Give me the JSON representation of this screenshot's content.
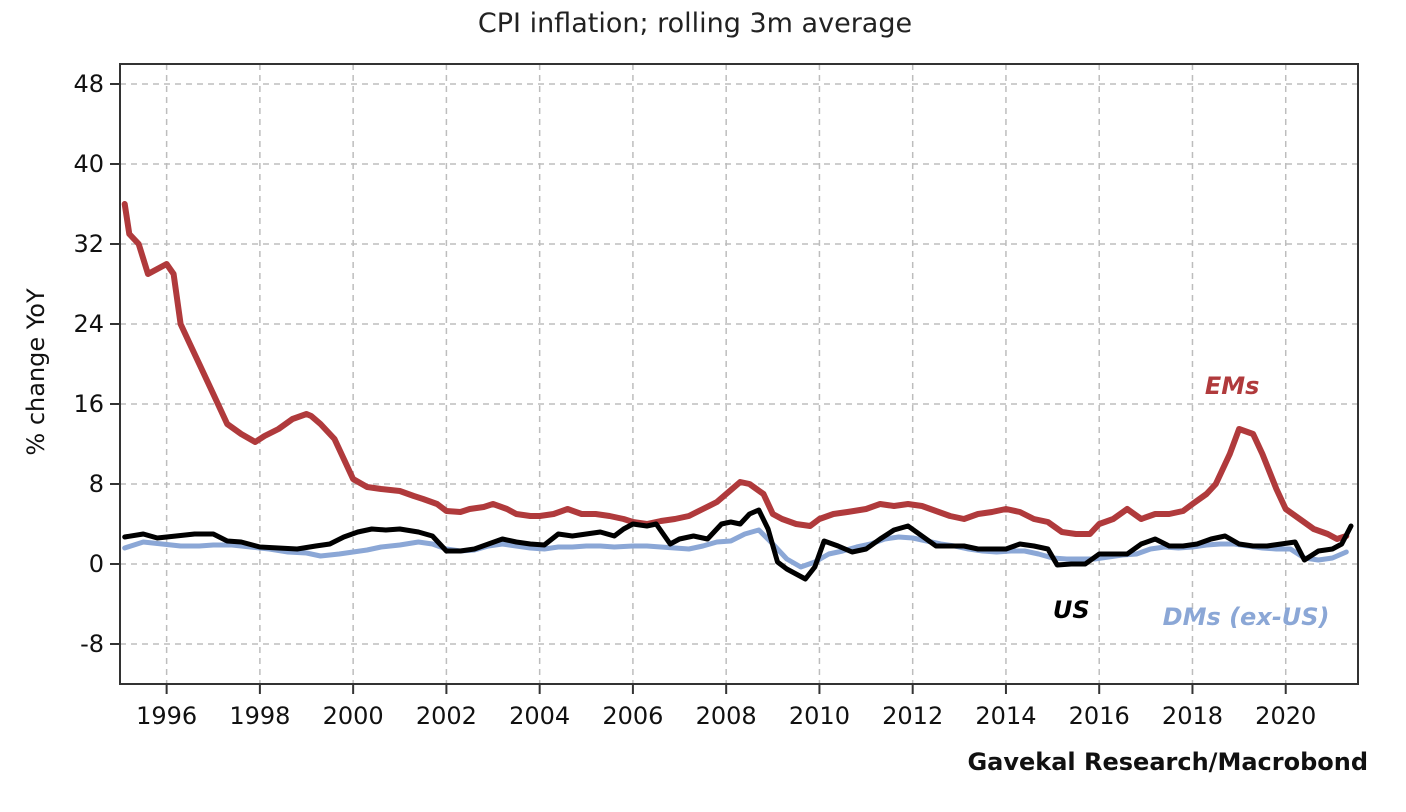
{
  "chart_data": {
    "type": "line",
    "title": "CPI inflation; rolling 3m average",
    "ylabel": "% change YoY",
    "xlabel": "",
    "source": "Gavekal Research/Macrobond",
    "ylim": [
      -12,
      50
    ],
    "xlim": [
      1995.0,
      2021.55
    ],
    "yticks": [
      -8,
      0,
      8,
      16,
      24,
      32,
      40,
      48
    ],
    "xticks": [
      1996,
      1998,
      2000,
      2002,
      2004,
      2006,
      2008,
      2010,
      2012,
      2014,
      2016,
      2018,
      2020
    ],
    "grid": true,
    "colors": {
      "EMs": "#b03a3c",
      "US": "#000000",
      "DMs (ex-US)": "#8ba7d6"
    },
    "series": [
      {
        "name": "EMs",
        "label": "EMs",
        "x": [
          1995.1,
          1995.2,
          1995.4,
          1995.6,
          1995.8,
          1996.0,
          1996.15,
          1996.3,
          1996.5,
          1996.7,
          1997.0,
          1997.3,
          1997.6,
          1997.9,
          1998.1,
          1998.4,
          1998.7,
          1999.0,
          1999.1,
          1999.3,
          1999.6,
          1999.8,
          2000.0,
          2000.3,
          2000.6,
          2001.0,
          2001.3,
          2001.5,
          2001.8,
          2002.0,
          2002.3,
          2002.5,
          2002.8,
          2003.0,
          2003.3,
          2003.5,
          2003.8,
          2004.0,
          2004.3,
          2004.6,
          2004.9,
          2005.2,
          2005.5,
          2005.8,
          2006.0,
          2006.3,
          2006.6,
          2006.9,
          2007.2,
          2007.5,
          2007.8,
          2008.0,
          2008.3,
          2008.5,
          2008.8,
          2009.0,
          2009.2,
          2009.5,
          2009.8,
          2010.0,
          2010.3,
          2010.6,
          2011.0,
          2011.3,
          2011.6,
          2011.9,
          2012.2,
          2012.5,
          2012.8,
          2013.1,
          2013.4,
          2013.7,
          2014.0,
          2014.3,
          2014.6,
          2014.9,
          2015.2,
          2015.5,
          2015.8,
          2016.0,
          2016.3,
          2016.6,
          2016.9,
          2017.2,
          2017.5,
          2017.8,
          2018.0,
          2018.3,
          2018.5,
          2018.8,
          2019.0,
          2019.3,
          2019.5,
          2019.8,
          2020.0,
          2020.3,
          2020.6,
          2020.9,
          2021.1,
          2021.3
        ],
        "y": [
          36,
          33,
          32,
          29,
          29.5,
          30,
          29,
          24,
          22,
          20,
          17,
          14,
          13,
          12.2,
          12.8,
          13.5,
          14.5,
          15,
          14.8,
          14,
          12.5,
          10.5,
          8.5,
          7.7,
          7.5,
          7.3,
          6.8,
          6.5,
          6,
          5.3,
          5.2,
          5.5,
          5.7,
          6,
          5.5,
          5,
          4.8,
          4.8,
          5,
          5.5,
          5,
          5,
          4.8,
          4.5,
          4.2,
          4.0,
          4.3,
          4.5,
          4.8,
          5.5,
          6.2,
          7,
          8.2,
          8,
          7,
          5,
          4.5,
          4,
          3.8,
          4.5,
          5,
          5.2,
          5.5,
          6,
          5.8,
          6,
          5.8,
          5.3,
          4.8,
          4.5,
          5,
          5.2,
          5.5,
          5.2,
          4.5,
          4.2,
          3.2,
          3,
          3,
          4,
          4.5,
          5.5,
          4.5,
          5,
          5,
          5.3,
          6,
          7,
          8,
          11,
          13.5,
          13,
          11,
          7.5,
          5.5,
          4.5,
          3.5,
          3,
          2.5,
          2.8
        ]
      },
      {
        "name": "US",
        "label": "US",
        "x": [
          1995.1,
          1995.5,
          1995.8,
          1996.2,
          1996.6,
          1997.0,
          1997.3,
          1997.6,
          1998.0,
          1998.4,
          1998.8,
          1999.2,
          1999.5,
          1999.8,
          2000.1,
          2000.4,
          2000.7,
          2001.0,
          2001.4,
          2001.7,
          2002.0,
          2002.3,
          2002.6,
          2002.9,
          2003.2,
          2003.5,
          2003.8,
          2004.1,
          2004.4,
          2004.7,
          2005.0,
          2005.3,
          2005.6,
          2005.8,
          2006.0,
          2006.3,
          2006.5,
          2006.8,
          2007.0,
          2007.3,
          2007.6,
          2007.9,
          2008.1,
          2008.3,
          2008.5,
          2008.7,
          2008.9,
          2009.1,
          2009.3,
          2009.5,
          2009.7,
          2009.9,
          2010.1,
          2010.4,
          2010.7,
          2011.0,
          2011.3,
          2011.6,
          2011.9,
          2012.2,
          2012.5,
          2012.8,
          2013.1,
          2013.4,
          2013.7,
          2014.0,
          2014.3,
          2014.6,
          2014.9,
          2015.1,
          2015.4,
          2015.7,
          2016.0,
          2016.3,
          2016.6,
          2016.9,
          2017.2,
          2017.5,
          2017.8,
          2018.1,
          2018.4,
          2018.7,
          2019.0,
          2019.3,
          2019.6,
          2019.9,
          2020.2,
          2020.4,
          2020.7,
          2021.0,
          2021.2,
          2021.4
        ],
        "y": [
          2.7,
          3,
          2.6,
          2.8,
          3,
          3,
          2.3,
          2.2,
          1.7,
          1.6,
          1.5,
          1.8,
          2,
          2.7,
          3.2,
          3.5,
          3.4,
          3.5,
          3.2,
          2.8,
          1.3,
          1.3,
          1.5,
          2.0,
          2.5,
          2.2,
          2.0,
          1.9,
          3.0,
          2.8,
          3.0,
          3.2,
          2.8,
          3.5,
          4.0,
          3.8,
          4.0,
          2.0,
          2.5,
          2.8,
          2.5,
          4.0,
          4.2,
          4.0,
          5.0,
          5.4,
          3.5,
          0.2,
          -0.5,
          -1.0,
          -1.5,
          -0.3,
          2.3,
          1.8,
          1.2,
          1.5,
          2.5,
          3.4,
          3.8,
          2.8,
          1.8,
          1.8,
          1.8,
          1.5,
          1.5,
          1.5,
          2.0,
          1.8,
          1.5,
          -0.1,
          0,
          0,
          1.0,
          1.0,
          1.0,
          2.0,
          2.5,
          1.8,
          1.8,
          2.0,
          2.5,
          2.8,
          2.0,
          1.8,
          1.8,
          2.0,
          2.2,
          0.4,
          1.3,
          1.5,
          2.0,
          3.8
        ]
      },
      {
        "name": "DMs (ex-US)",
        "label": "DMs (ex-US)",
        "x": [
          1995.1,
          1995.5,
          1995.9,
          1996.3,
          1996.7,
          1997.0,
          1997.4,
          1997.8,
          1998.2,
          1998.6,
          1999.0,
          1999.3,
          1999.7,
          2000.0,
          2000.3,
          2000.6,
          2001.0,
          2001.4,
          2001.7,
          2002.0,
          2002.3,
          2002.6,
          2002.9,
          2003.2,
          2003.5,
          2003.8,
          2004.1,
          2004.4,
          2004.7,
          2005.0,
          2005.3,
          2005.6,
          2006.0,
          2006.3,
          2006.6,
          2006.9,
          2007.2,
          2007.5,
          2007.8,
          2008.1,
          2008.4,
          2008.7,
          2009.0,
          2009.3,
          2009.6,
          2009.9,
          2010.2,
          2010.5,
          2010.8,
          2011.1,
          2011.4,
          2011.7,
          2012.0,
          2012.3,
          2012.6,
          2012.9,
          2013.2,
          2013.5,
          2013.8,
          2014.1,
          2014.4,
          2014.7,
          2015.0,
          2015.3,
          2015.6,
          2015.9,
          2016.2,
          2016.5,
          2016.8,
          2017.1,
          2017.4,
          2017.7,
          2018.0,
          2018.3,
          2018.6,
          2018.9,
          2019.2,
          2019.5,
          2019.8,
          2020.1,
          2020.4,
          2020.7,
          2021.0,
          2021.3
        ],
        "y": [
          1.6,
          2.2,
          2.0,
          1.8,
          1.8,
          1.9,
          1.9,
          1.7,
          1.5,
          1.2,
          1.1,
          0.8,
          1.0,
          1.2,
          1.4,
          1.7,
          1.9,
          2.2,
          2.0,
          1.5,
          1.3,
          1.4,
          1.8,
          2.0,
          1.8,
          1.6,
          1.5,
          1.7,
          1.7,
          1.8,
          1.8,
          1.7,
          1.8,
          1.8,
          1.7,
          1.6,
          1.5,
          1.8,
          2.2,
          2.3,
          3.0,
          3.4,
          2.0,
          0.5,
          -0.3,
          0.2,
          1.0,
          1.3,
          1.7,
          2.0,
          2.5,
          2.7,
          2.6,
          2.3,
          2.0,
          1.8,
          1.5,
          1.3,
          1.2,
          1.3,
          1.3,
          1.0,
          0.6,
          0.5,
          0.5,
          0.5,
          0.7,
          0.9,
          1.0,
          1.5,
          1.7,
          1.6,
          1.7,
          1.9,
          2.0,
          2.0,
          1.8,
          1.6,
          1.5,
          1.5,
          0.6,
          0.4,
          0.6,
          1.2
        ]
      }
    ]
  }
}
